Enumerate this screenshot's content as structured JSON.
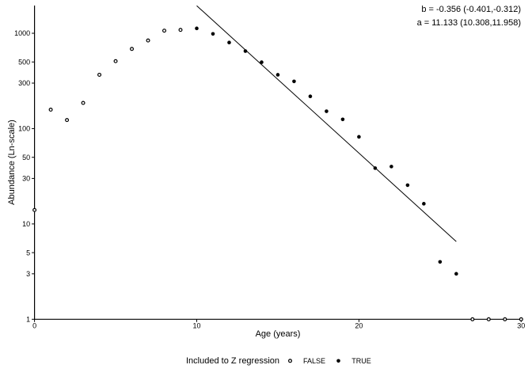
{
  "figure": {
    "background": "#ffffff",
    "foreground": "#000000",
    "annotations": {
      "slope_line": "b = -0.356 (-0.401,-0.312)",
      "intercept_line": "a = 11.133 (10.308,11.958)"
    },
    "legend": {
      "title": "Included to Z regression",
      "items": [
        {
          "label": "FALSE",
          "marker": "open-circle"
        },
        {
          "label": "TRUE",
          "marker": "filled-circle"
        }
      ]
    }
  },
  "chart_data": {
    "type": "scatter",
    "title": "",
    "xlabel": "Age (years)",
    "ylabel": "Abundance (Ln-scale)",
    "x_ticks": [
      0,
      10,
      20,
      30
    ],
    "y_ticks": [
      1,
      3,
      5,
      10,
      30,
      50,
      100,
      300,
      500,
      1000
    ],
    "xlim": [
      0,
      30
    ],
    "ylim": [
      1,
      1950
    ],
    "y_scale": "ln",
    "grid": false,
    "legend_position": "bottom",
    "marker_color": "#000000",
    "line_color": "#000000",
    "series": [
      {
        "name": "FALSE",
        "marker": "open-circle",
        "points": [
          [
            0,
            14
          ],
          [
            1,
            158
          ],
          [
            2,
            123
          ],
          [
            3,
            186
          ],
          [
            4,
            367
          ],
          [
            5,
            510
          ],
          [
            6,
            685
          ],
          [
            7,
            840
          ],
          [
            8,
            1065
          ],
          [
            9,
            1085
          ],
          [
            27,
            1
          ],
          [
            28,
            1
          ],
          [
            29,
            1
          ],
          [
            30,
            1
          ]
        ]
      },
      {
        "name": "TRUE",
        "marker": "filled-circle",
        "points": [
          [
            10,
            1125
          ],
          [
            11,
            985
          ],
          [
            12,
            800
          ],
          [
            13,
            650
          ],
          [
            14,
            497
          ],
          [
            15,
            367
          ],
          [
            16,
            313
          ],
          [
            17,
            218
          ],
          [
            18,
            152
          ],
          [
            19,
            125
          ],
          [
            20,
            82
          ],
          [
            21,
            38.5
          ],
          [
            22,
            40
          ],
          [
            23,
            25.5
          ],
          [
            24,
            16.3
          ],
          [
            25,
            4
          ],
          [
            26,
            3
          ]
        ]
      }
    ],
    "regression": {
      "b": -0.356,
      "b_ci": [
        -0.401,
        -0.312
      ],
      "a": 11.133,
      "a_ci": [
        10.308,
        11.958
      ],
      "line_age_range": [
        10,
        26
      ]
    }
  }
}
